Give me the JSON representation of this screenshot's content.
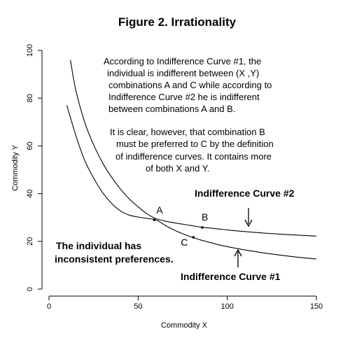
{
  "chart_data": {
    "type": "line",
    "title": "Figure 2.  Irrationality",
    "xlabel": "Commodity X",
    "ylabel": "Commodity Y",
    "xlim": [
      0,
      150
    ],
    "ylim": [
      0,
      100
    ],
    "xticks": [
      0,
      50,
      100,
      150
    ],
    "yticks": [
      0,
      20,
      40,
      60,
      80,
      100
    ],
    "grid": false,
    "legend": "none",
    "series": [
      {
        "name": "Indifference Curve #2",
        "x": [
          12,
          15,
          20,
          25,
          30,
          35,
          40,
          45,
          50,
          55,
          60,
          65,
          70,
          75,
          80,
          85,
          90,
          95,
          100,
          110,
          120,
          130,
          140,
          150
        ],
        "y": [
          96,
          83.5,
          70,
          60.5,
          53,
          47,
          42,
          37.8,
          34.5,
          31.5,
          29.5,
          28.5,
          27.8,
          27.2,
          26.6,
          26,
          25.6,
          25.2,
          24.8,
          24.1,
          23.5,
          23,
          22.6,
          22.2
        ]
      },
      {
        "name": "Indifference Curve #1",
        "x": [
          10,
          15,
          20,
          25,
          30,
          35,
          40,
          45,
          50,
          55,
          60,
          65,
          70,
          75,
          80,
          85,
          90,
          95,
          100,
          110,
          120,
          130,
          140,
          150
        ],
        "y": [
          77,
          64.5,
          54,
          46.5,
          40.5,
          36,
          32.8,
          31,
          30.2,
          29.6,
          29,
          26.8,
          24.8,
          23.2,
          21.8,
          20.6,
          19.6,
          18.6,
          17.8,
          16.4,
          15.2,
          14.2,
          13.3,
          12.6
        ]
      }
    ],
    "points": [
      {
        "label": "A",
        "x": 59,
        "y": 29
      },
      {
        "label": "B",
        "x": 86,
        "y": 25.8
      },
      {
        "label": "C",
        "x": 81,
        "y": 21.7
      }
    ],
    "annotations": {
      "note1": [
        "According to Indifference Curve #1, the",
        "individual is indifferent between (X ,Y)",
        "combinations A and C while according to",
        "Indifference Curve #2 he is indifferent",
        "between combinations A and B."
      ],
      "note2": [
        "It is clear, however, that combination B",
        "must be preferred to C by the definition",
        "of indifference curves.  It contains more",
        "of both X and Y."
      ],
      "curve2_label": "Indifference Curve #2",
      "curve1_label": "Indifference Curve #1",
      "inconsistent": [
        "The individual has",
        "inconsistent preferences."
      ]
    }
  }
}
